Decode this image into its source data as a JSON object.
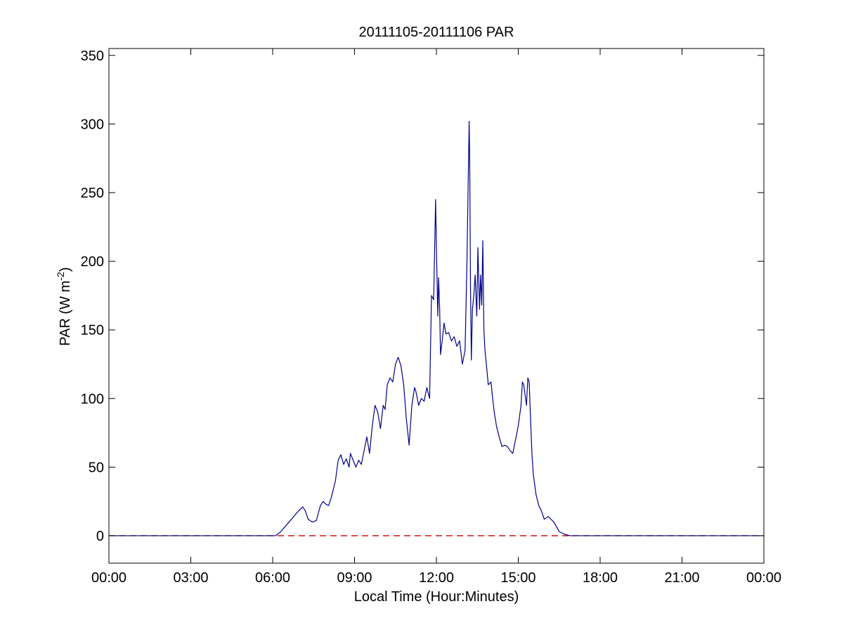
{
  "chart_data": {
    "type": "line",
    "title": "20111105-20111106 PAR",
    "xlabel": "Local Time (Hour:Minutes)",
    "ylabel": {
      "base": "PAR (W m",
      "sup": "-2",
      "close": ")"
    },
    "xlim": [
      0,
      24
    ],
    "ylim": [
      -20,
      355
    ],
    "x_ticks": [
      {
        "value": 0,
        "label": "00:00"
      },
      {
        "value": 3,
        "label": "03:00"
      },
      {
        "value": 6,
        "label": "06:00"
      },
      {
        "value": 9,
        "label": "09:00"
      },
      {
        "value": 12,
        "label": "12:00"
      },
      {
        "value": 15,
        "label": "15:00"
      },
      {
        "value": 18,
        "label": "18:00"
      },
      {
        "value": 21,
        "label": "21:00"
      },
      {
        "value": 24,
        "label": "00:00"
      }
    ],
    "y_ticks": [
      {
        "value": 0,
        "label": "0"
      },
      {
        "value": 50,
        "label": "50"
      },
      {
        "value": 100,
        "label": "100"
      },
      {
        "value": 150,
        "label": "150"
      },
      {
        "value": 200,
        "label": "200"
      },
      {
        "value": 250,
        "label": "250"
      },
      {
        "value": 300,
        "label": "300"
      },
      {
        "value": 350,
        "label": "350"
      }
    ],
    "grid": false,
    "reference_line": {
      "y": 0,
      "color": "#cc0000",
      "style": "dashed"
    },
    "series": [
      {
        "color": "#00008b",
        "x": [
          0,
          6.1,
          6.3,
          6.6,
          6.9,
          7.1,
          7.2,
          7.3,
          7.45,
          7.6,
          7.75,
          7.85,
          7.95,
          8.05,
          8.15,
          8.3,
          8.4,
          8.5,
          8.6,
          8.7,
          8.8,
          8.85,
          8.95,
          9.05,
          9.15,
          9.25,
          9.35,
          9.45,
          9.55,
          9.65,
          9.75,
          9.85,
          9.95,
          10.05,
          10.12,
          10.2,
          10.3,
          10.4,
          10.5,
          10.6,
          10.7,
          10.8,
          10.9,
          11.0,
          11.1,
          11.2,
          11.25,
          11.35,
          11.45,
          11.55,
          11.65,
          11.75,
          11.82,
          11.9,
          11.97,
          12.0,
          12.05,
          12.08,
          12.12,
          12.15,
          12.2,
          12.28,
          12.35,
          12.45,
          12.55,
          12.65,
          12.75,
          12.85,
          12.95,
          13.05,
          13.12,
          13.2,
          13.22,
          13.25,
          13.28,
          13.32,
          13.37,
          13.42,
          13.48,
          13.52,
          13.58,
          13.62,
          13.66,
          13.7,
          13.74,
          13.78,
          13.83,
          13.9,
          14.0,
          14.05,
          14.12,
          14.2,
          14.3,
          14.4,
          14.5,
          14.6,
          14.7,
          14.8,
          14.9,
          15.0,
          15.1,
          15.15,
          15.2,
          15.3,
          15.35,
          15.4,
          15.45,
          15.5,
          15.55,
          15.65,
          15.75,
          15.85,
          15.95,
          16.1,
          16.3,
          16.5,
          16.7,
          16.9,
          17.1,
          17.3,
          18.0,
          24
        ],
        "y": [
          0,
          0,
          3,
          10,
          17,
          21,
          18,
          12,
          10,
          11,
          22,
          25,
          23,
          22,
          28,
          40,
          55,
          59,
          52,
          56,
          50,
          60,
          55,
          50,
          55,
          52,
          62,
          72,
          60,
          80,
          95,
          90,
          78,
          95,
          92,
          110,
          115,
          112,
          125,
          130,
          124,
          110,
          85,
          66,
          95,
          108,
          105,
          95,
          100,
          98,
          108,
          100,
          175,
          172,
          245,
          210,
          160,
          188,
          165,
          132,
          140,
          155,
          147,
          148,
          142,
          145,
          138,
          142,
          125,
          135,
          200,
          302,
          275,
          180,
          128,
          165,
          175,
          190,
          160,
          210,
          165,
          190,
          168,
          215,
          150,
          135,
          125,
          110,
          112,
          102,
          90,
          80,
          72,
          65,
          66,
          65,
          62,
          60,
          70,
          80,
          95,
          112,
          110,
          95,
          115,
          112,
          85,
          60,
          45,
          30,
          22,
          18,
          12,
          14,
          10,
          3,
          1,
          0,
          0,
          0,
          0,
          0
        ]
      }
    ]
  }
}
